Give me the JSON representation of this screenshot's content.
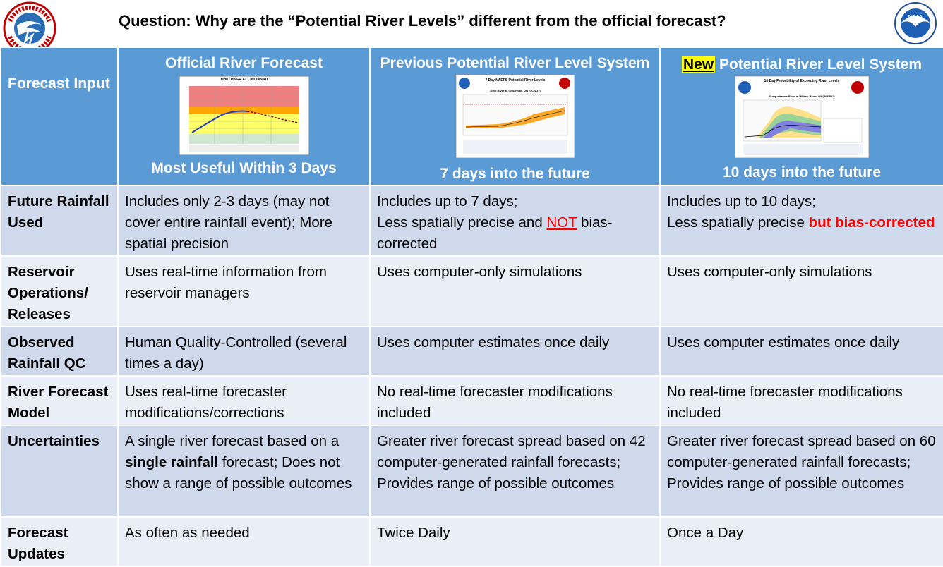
{
  "header": {
    "question": "Question:  Why are the “Potential River Levels” different from the official forecast?",
    "nws_logo_text": "NATIONAL WEATHER SERVICE",
    "noaa_logo_text": "NOAA"
  },
  "columns": {
    "row_label": "Forecast Input",
    "official": {
      "title": "Official River Forecast",
      "footer": "Most Useful Within 3 Days"
    },
    "previous": {
      "title": "Previous Potential River Level System",
      "footer": "7 days into the future"
    },
    "new": {
      "title_highlight": "New",
      "title_rest": " Potential River Level System",
      "footer": "10 days into the future"
    }
  },
  "rows": [
    {
      "label": "Future Rainfall Used",
      "official": "Includes only 2-3 days (may not cover entire rainfall event); More spatial precision",
      "previous_a": "Includes up to 7 days;",
      "previous_b": "Less spatially precise and ",
      "previous_not": "NOT",
      "previous_c": " bias-corrected",
      "new_a": "Includes up to 10 days;",
      "new_b": "Less spatially precise ",
      "new_red": "but bias-corrected"
    },
    {
      "label": "Reservoir Operations/ Releases",
      "official": "Uses real-time information from reservoir managers",
      "previous": "Uses computer-only simulations",
      "new": "Uses computer-only simulations"
    },
    {
      "label": "Observed Rainfall QC",
      "official": "Human Quality-Controlled (several times a day)",
      "previous": "Uses computer estimates once daily",
      "new": "Uses computer estimates once daily"
    },
    {
      "label": "River Forecast Model",
      "official": "Uses real-time forecaster modifications/corrections",
      "previous": "No real-time forecaster modifications included",
      "new": "No real-time forecaster modifications included"
    },
    {
      "label": "Uncertainties",
      "official_a": "A single river forecast based on a ",
      "official_bold": "single rainfall",
      "official_b": " forecast; Does not show a range of possible outcomes",
      "previous": "Greater river forecast spread based on 42 computer-generated rainfall forecasts; Provides range of possible outcomes",
      "new": "Greater river forecast spread based on 60 computer-generated rainfall forecasts; Provides range of possible outcomes"
    },
    {
      "label": "Forecast Updates",
      "official": "As often as needed",
      "previous": "Twice Daily",
      "new": "Once a Day"
    }
  ],
  "thumbnails": {
    "official_title": "OHIO RIVER AT CINCINNATI",
    "previous_title": "7 Day NAEFS Potential River Levels",
    "previous_subtitle": "Ohio River at Cincinnati, OH (CCNO1)",
    "new_title": "10 Day Probability of Exceeding River Levels",
    "new_subtitle": "Susquehanna River at Wilkes-Barre, PA (WBRP1)"
  },
  "colors": {
    "header_blue": "#5b9bd5",
    "row_dark": "#cfd9ec",
    "row_light": "#e9eef7",
    "emphasis_red": "#ff0000",
    "highlight_yellow": "#ffff00"
  }
}
